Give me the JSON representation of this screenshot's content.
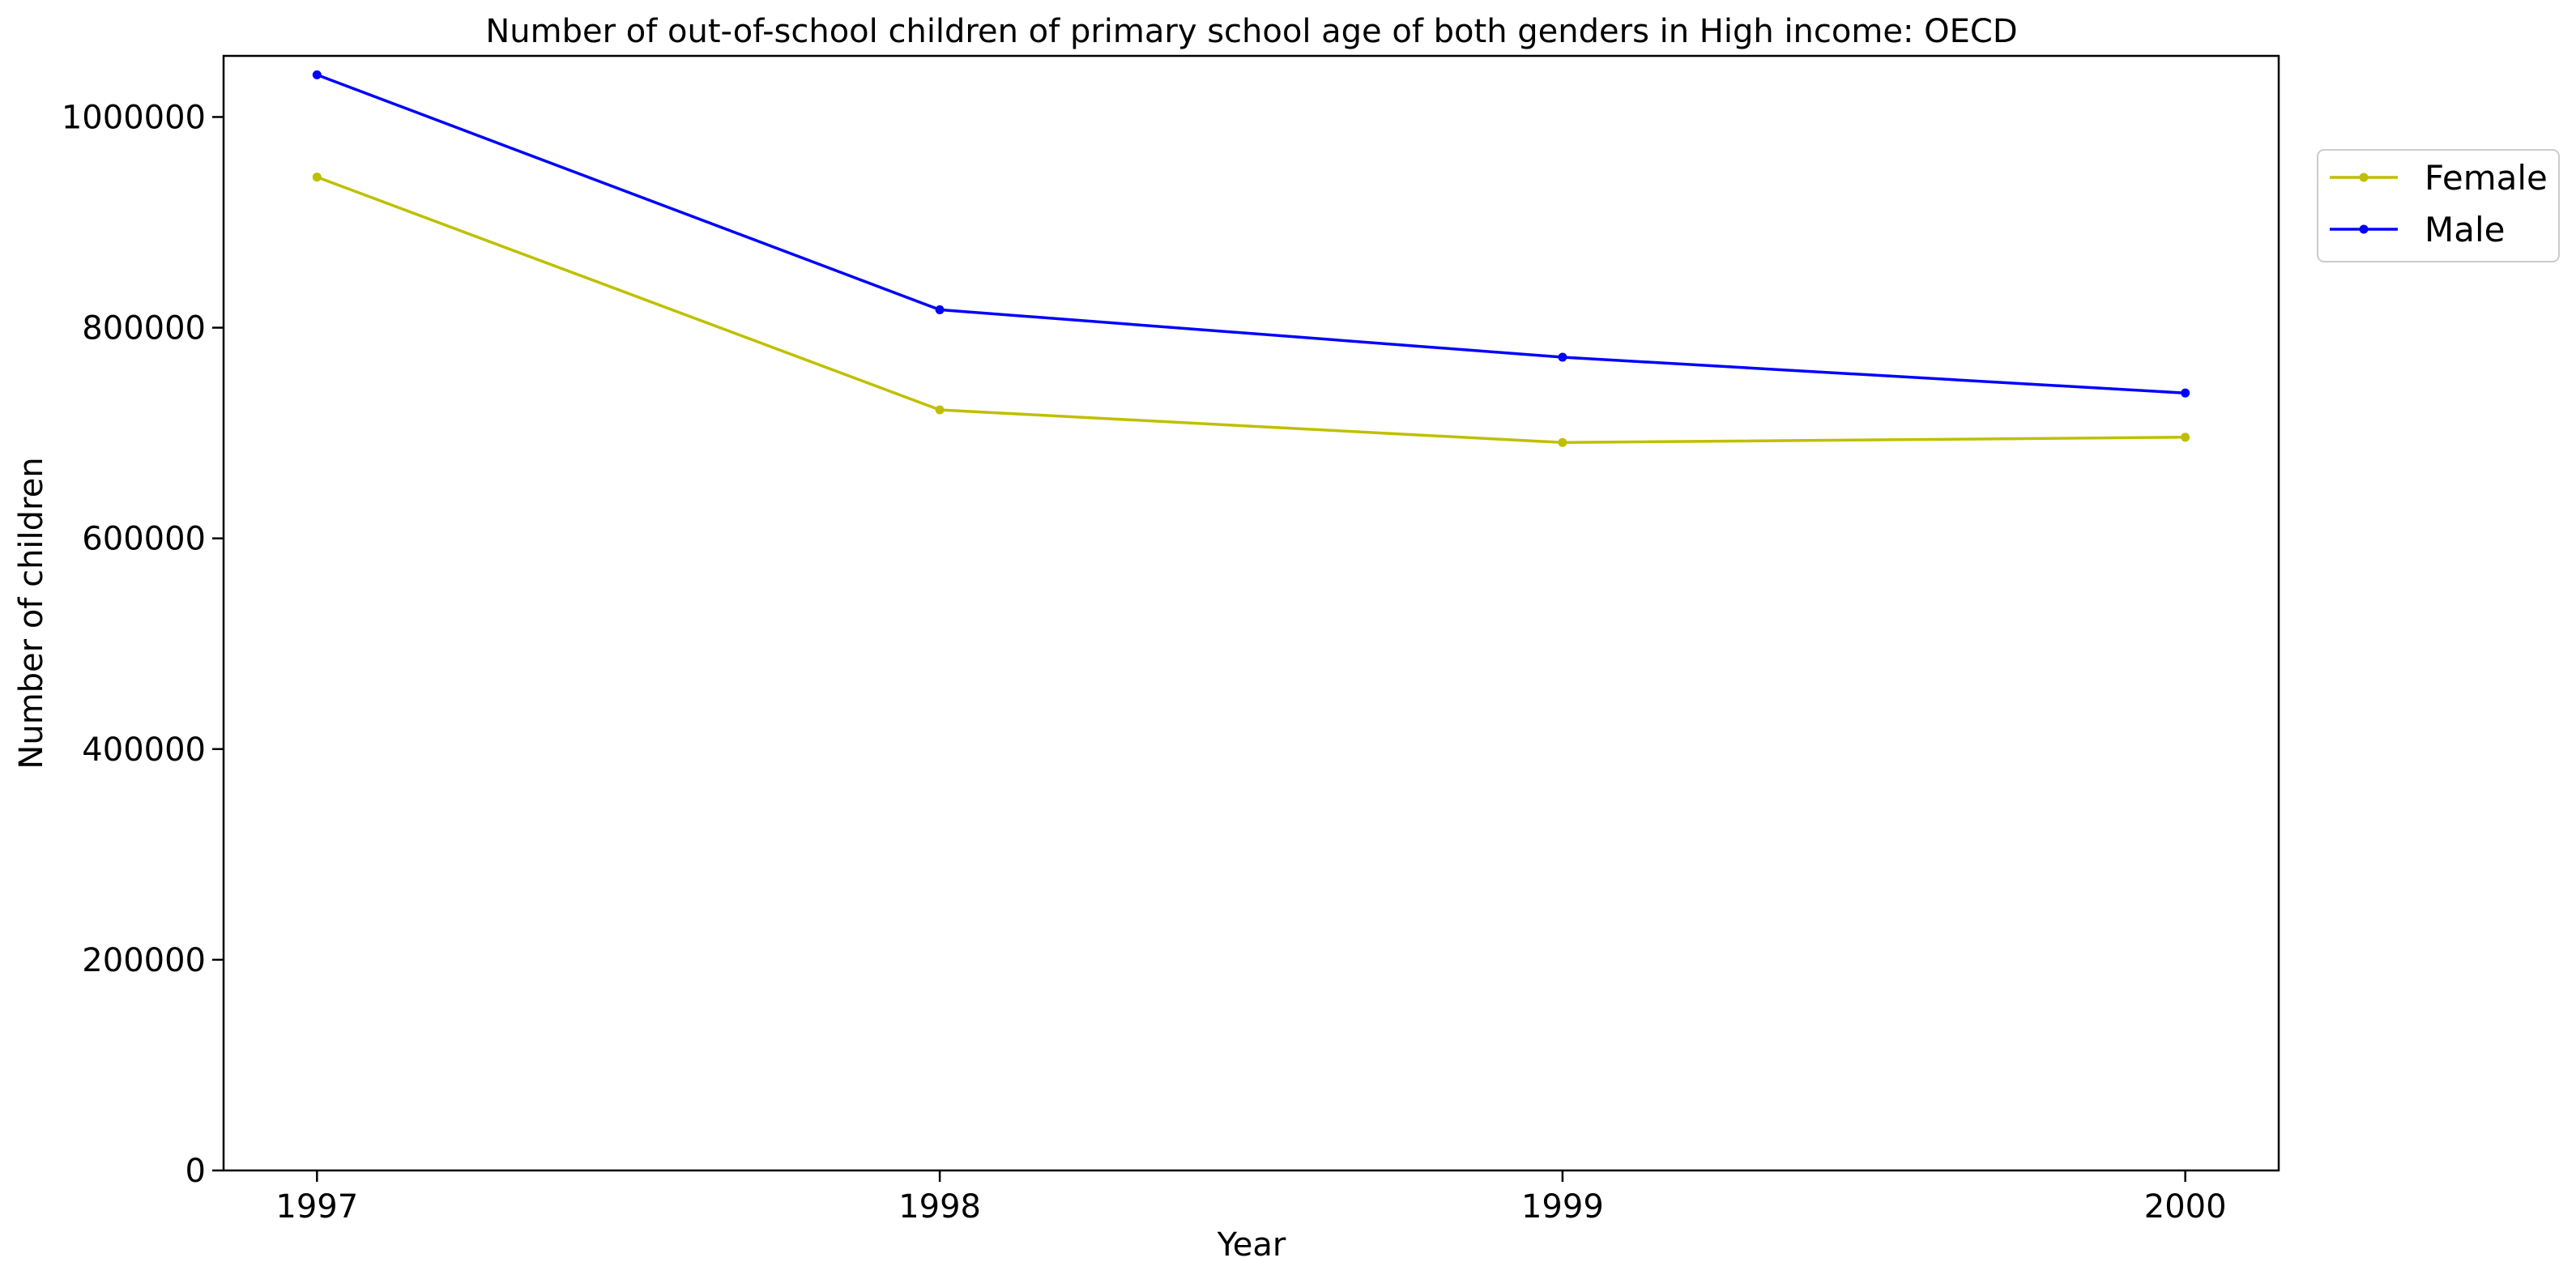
{
  "chart_data": {
    "type": "line",
    "title": "Number of out-of-school children of primary school age of both genders in High income: OECD",
    "xlabel": "Year",
    "ylabel": "Number of children",
    "x": [
      1997,
      1998,
      1999,
      2000
    ],
    "x_tick_labels": [
      "1997",
      "1998",
      "1999",
      "2000"
    ],
    "y_ticks": [
      0,
      200000,
      400000,
      600000,
      800000,
      1000000
    ],
    "y_tick_labels": [
      "0",
      "200000",
      "400000",
      "600000",
      "800000",
      "1000000"
    ],
    "ylim": [
      0,
      1058000
    ],
    "xlim": [
      1996.85,
      2000.15
    ],
    "grid": false,
    "legend_position": "upper right, outside plot area",
    "series": [
      {
        "name": "Female",
        "color": "#bfbf00",
        "values": [
          943000,
          722000,
          691000,
          696000
        ]
      },
      {
        "name": "Male",
        "color": "#0000ff",
        "values": [
          1040000,
          817000,
          772000,
          738000
        ]
      }
    ]
  }
}
